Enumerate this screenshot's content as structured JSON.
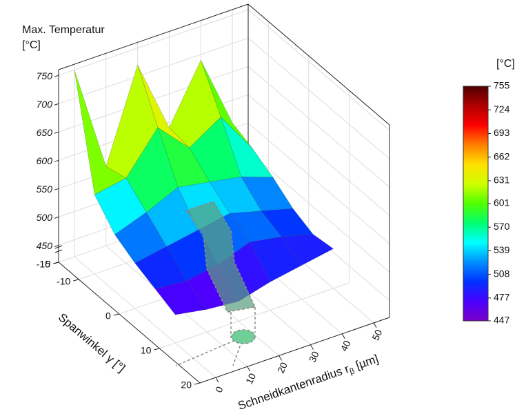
{
  "chart_data": {
    "type": "surface3d",
    "zlabel": [
      "Max. Temperatur",
      "[°C]"
    ],
    "xlabel": "Schneidkantenradius r",
    "xlabel_sub": "β",
    "xlabel_unit": " [µm]",
    "ylabel": "Spanwinkel γ [°]",
    "x": [
      0,
      10,
      20,
      30,
      40,
      50
    ],
    "y": [
      -15,
      -10,
      -5,
      0,
      5,
      10
    ],
    "z": [
      [
        750,
        560,
        720,
        590,
        690,
        560
      ],
      [
        560,
        570,
        640,
        585,
        620,
        545
      ],
      [
        520,
        540,
        565,
        555,
        545,
        525
      ],
      [
        500,
        510,
        520,
        530,
        515,
        500
      ],
      [
        485,
        480,
        490,
        510,
        500,
        485
      ],
      [
        470,
        460,
        455,
        470,
        480,
        490
      ]
    ],
    "xlim": [
      -5,
      55
    ],
    "xticks": [
      0,
      10,
      20,
      30,
      40,
      50
    ],
    "ylim": [
      -15,
      20
    ],
    "yticks": [
      -15,
      -10,
      0,
      10,
      20
    ],
    "zlim": [
      420,
      760
    ],
    "zticks": [
      450,
      500,
      550,
      600,
      650,
      700,
      750
    ],
    "zbase": 0,
    "colorbar": {
      "title": "[°C]",
      "clim": [
        447,
        755
      ],
      "ticks": [
        447,
        477,
        508,
        539,
        570,
        601,
        631,
        662,
        693,
        724,
        755
      ],
      "colors": [
        "#7a00c8",
        "#4a00ff",
        "#0030ff",
        "#0090ff",
        "#00ffff",
        "#00ff70",
        "#50ff00",
        "#d0ff00",
        "#ffe000",
        "#ff8000",
        "#ff0000",
        "#b00000",
        "#500000"
      ]
    }
  }
}
